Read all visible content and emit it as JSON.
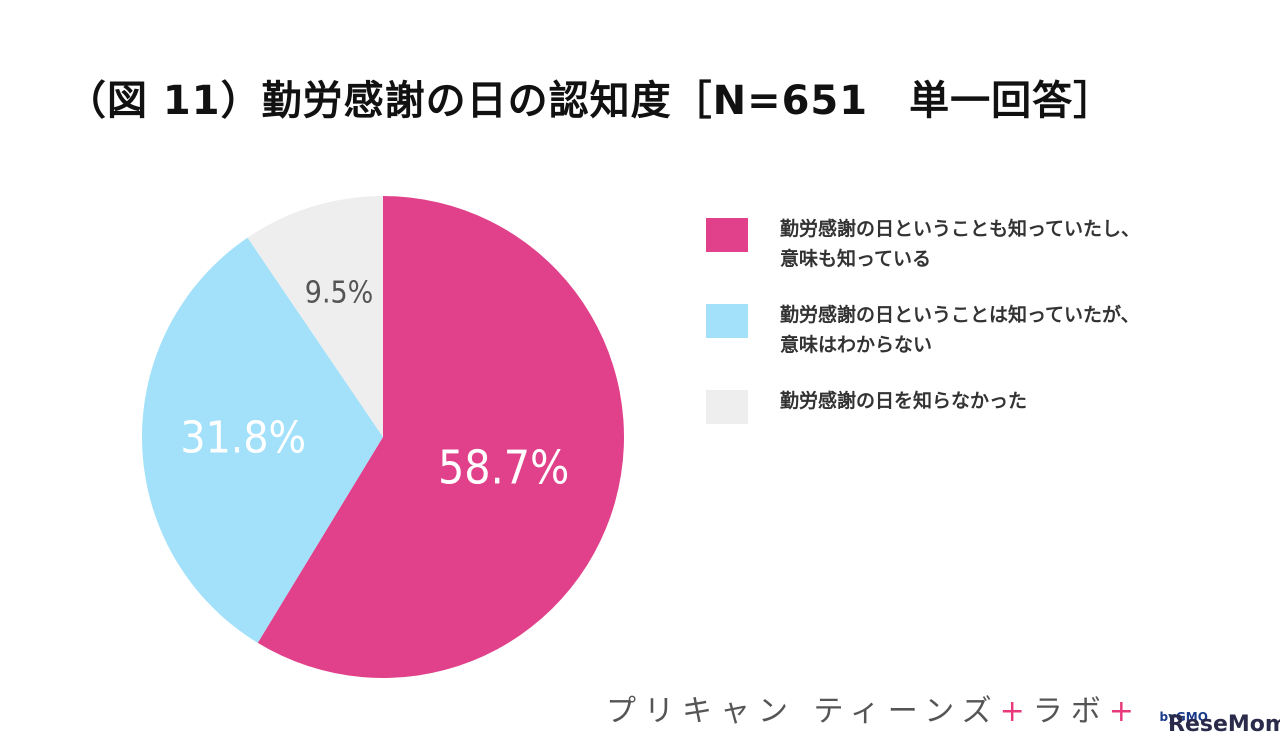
{
  "chart_data": {
    "type": "pie",
    "title": "（図 11）勤労感謝の日の認知度［N=651　単一回答］",
    "slices": [
      {
        "label": "勤労感謝の日ということも知っていたし、意味も知っている",
        "value": 58.7,
        "value_label": "58.7%",
        "color": "#e0418a"
      },
      {
        "label": "勤労感謝の日ということは知っていたが、意味はわからない",
        "value": 31.8,
        "value_label": "31.8%",
        "color": "#a3e1fa"
      },
      {
        "label": "勤労感謝の日を知らなかった",
        "value": 9.5,
        "value_label": "9.5%",
        "color": "#eeeeee"
      }
    ],
    "start_angle_deg": 0,
    "direction": "clockwise",
    "legend_position": "right"
  },
  "legend": {
    "items": [
      {
        "line1": "勤労感謝の日ということも知っていたし、",
        "line2": "意味も知っている"
      },
      {
        "line1": "勤労感謝の日ということは知っていたが、",
        "line2": "意味はわからない"
      },
      {
        "line1": "勤労感謝の日を知らなかった",
        "line2": ""
      }
    ]
  },
  "brand": {
    "name_part1": "プリキャン",
    "name_part2": "ティーンズ",
    "plus": "+",
    "name_part3": "ラボ",
    "by": "byGMO"
  },
  "watermark": "ReseMom"
}
